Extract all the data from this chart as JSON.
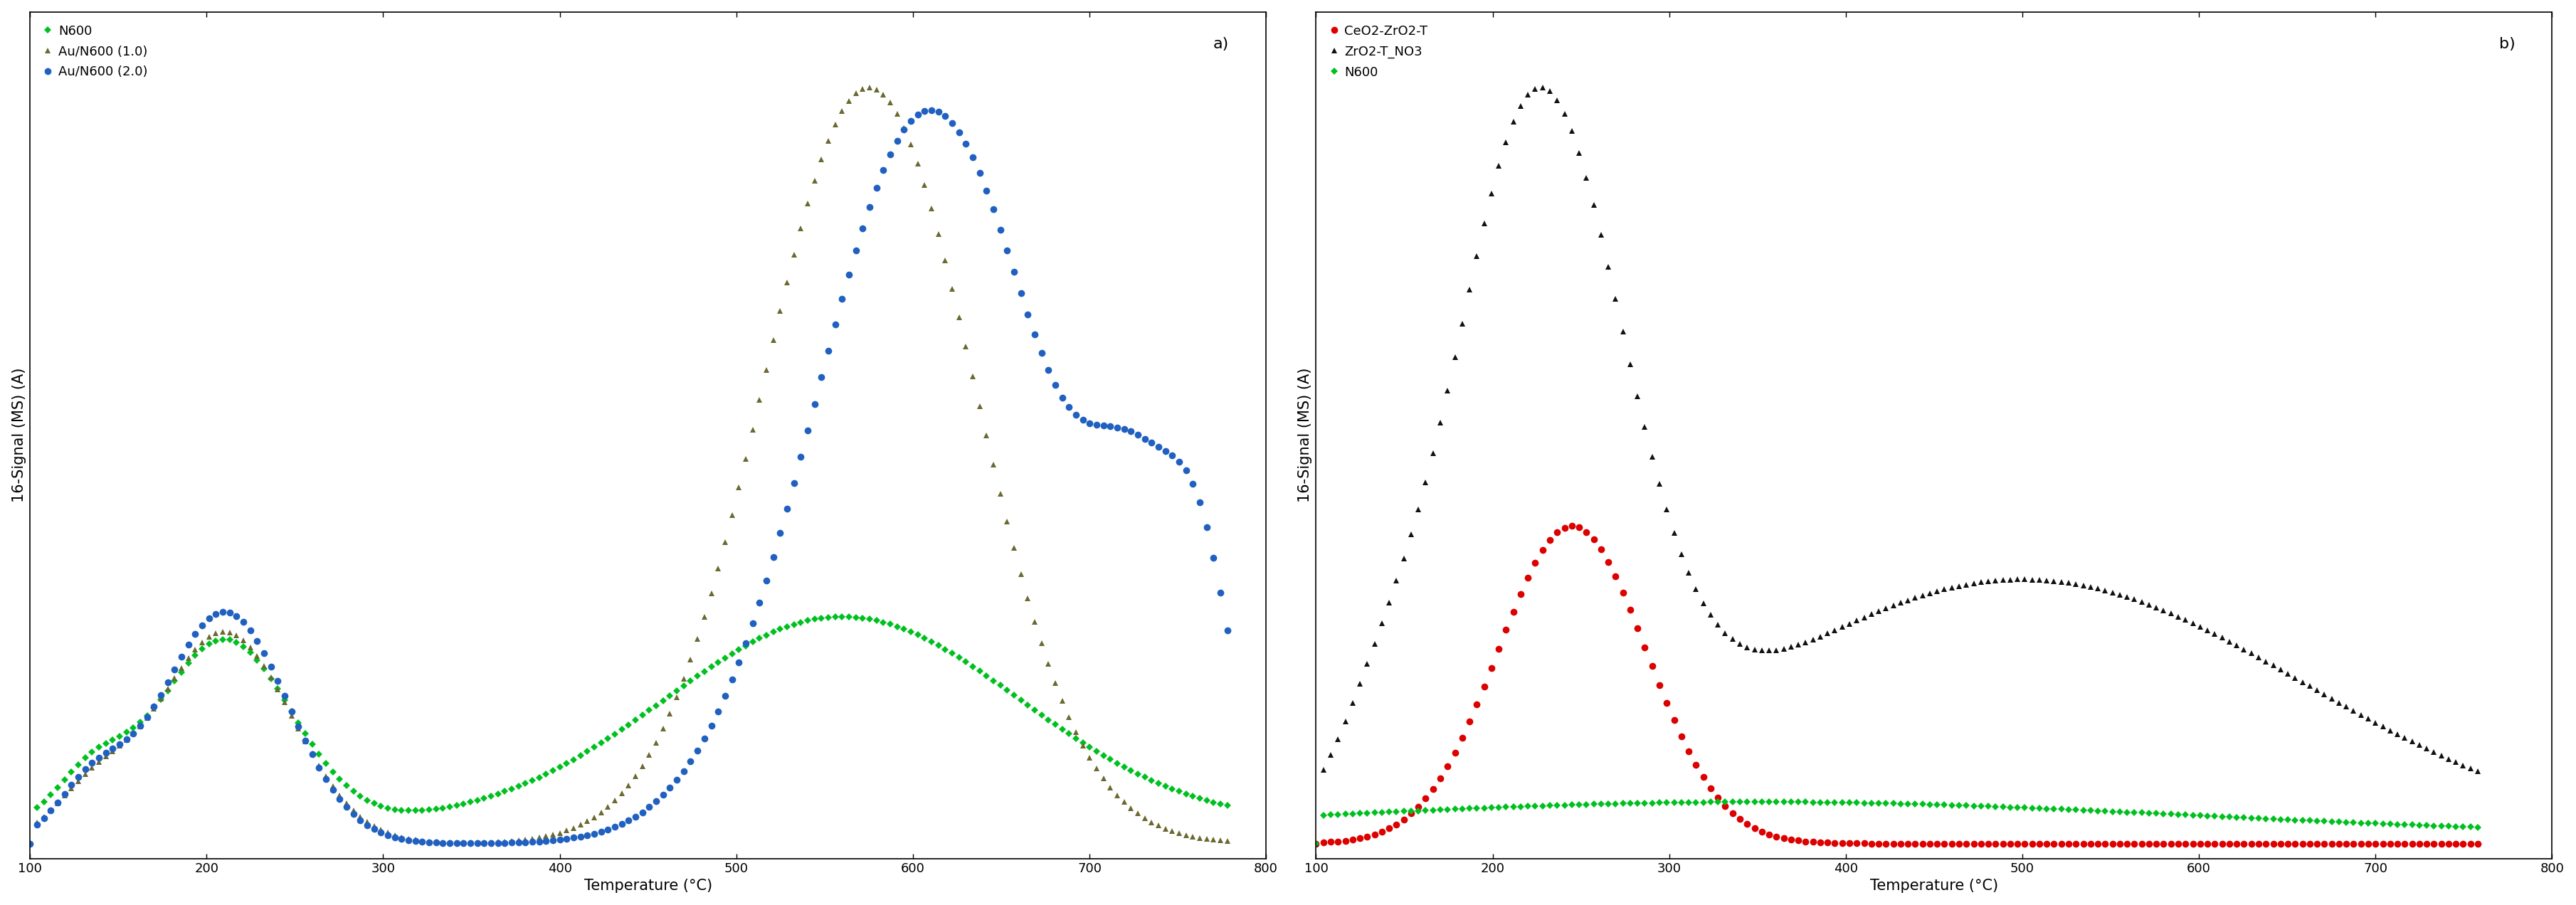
{
  "panel_a": {
    "title": "a)",
    "xlabel": "Temperature (°C)",
    "ylabel": "16-Signal (MS) (A)",
    "xlim": [
      100,
      800
    ],
    "xticks": [
      100,
      200,
      300,
      400,
      500,
      600,
      700,
      800
    ],
    "series": [
      {
        "label": "N600",
        "color": "#00c020",
        "marker": "D",
        "markersize": 5.5,
        "profile": "n600_a"
      },
      {
        "label": "Au/N600 (1.0)",
        "color": "#6b6830",
        "marker": "^",
        "markersize": 6,
        "profile": "au_n600_10"
      },
      {
        "label": "Au/N600 (2.0)",
        "color": "#2060c0",
        "marker": "o",
        "markersize": 7,
        "profile": "au_n600_20"
      }
    ]
  },
  "panel_b": {
    "title": "b)",
    "xlabel": "Temperature (°C)",
    "ylabel": "16-Signal (MS) (A)",
    "xlim": [
      100,
      800
    ],
    "xticks": [
      100,
      200,
      300,
      400,
      500,
      600,
      700,
      800
    ],
    "series": [
      {
        "label": "CeO2-ZrO2-T",
        "color": "#dd0000",
        "marker": "o",
        "markersize": 7,
        "profile": "ceo2_zro2_t"
      },
      {
        "label": "ZrO2-T_NO3",
        "color": "#111111",
        "marker": "^",
        "markersize": 6,
        "profile": "zro2_t_no3"
      },
      {
        "label": "N600",
        "color": "#00c020",
        "marker": "D",
        "markersize": 5.5,
        "profile": "n600_b"
      }
    ]
  },
  "background_color": "#ffffff",
  "font_size_label": 15,
  "font_size_tick": 13,
  "font_size_legend": 13,
  "font_size_title": 16
}
